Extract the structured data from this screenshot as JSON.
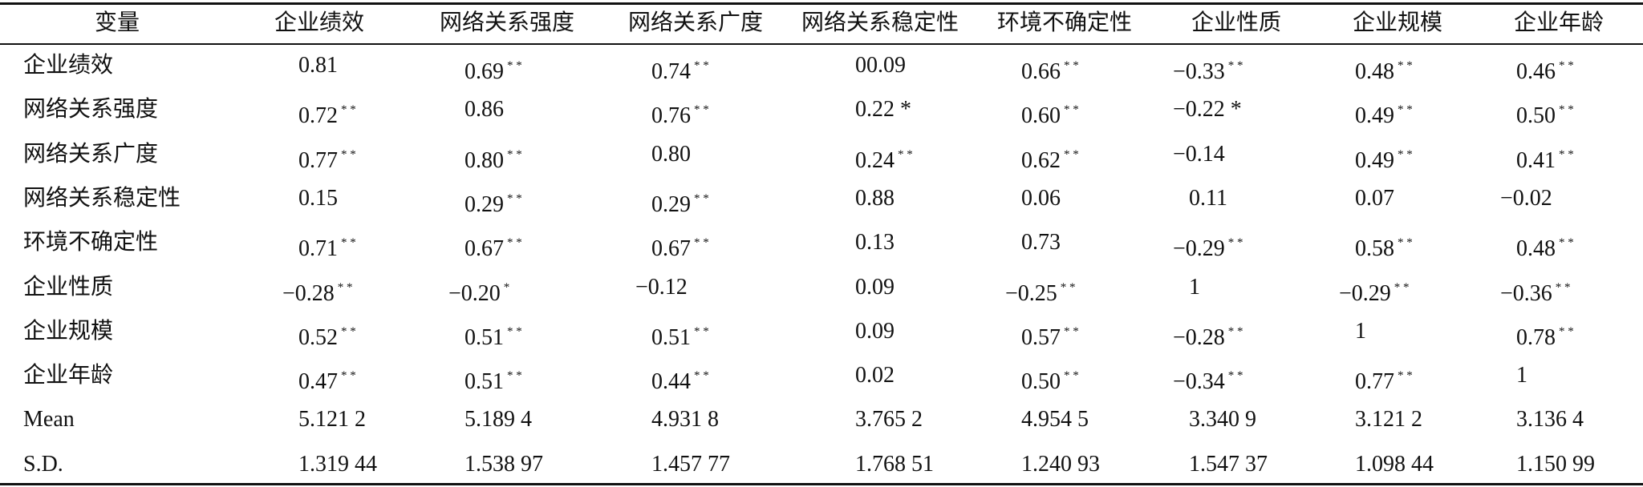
{
  "table": {
    "header": [
      "变量",
      "企业绩效",
      "网络关系强度",
      "网络关系广度",
      "网络关系稳定性",
      "环境不确定性",
      "企业性质",
      "企业规模",
      "企业年龄"
    ],
    "rows": [
      [
        "企业绩效",
        "0.81",
        {
          "text": "0.69",
          "sup": "* *"
        },
        {
          "text": "0.74",
          "sup": "* *"
        },
        "00.09",
        {
          "text": "0.66",
          "sup": "* *"
        },
        {
          "text": "−0.33",
          "sup": "* *"
        },
        {
          "text": "0.48",
          "sup": "* *"
        },
        {
          "text": "0.46",
          "sup": "* *"
        }
      ],
      [
        "网络关系强度",
        {
          "text": "0.72",
          "sup": "* *"
        },
        "0.86",
        {
          "text": "0.76",
          "sup": "* *"
        },
        "0.22 *",
        {
          "text": "0.60",
          "sup": "* *"
        },
        "−0.22 *",
        {
          "text": "0.49",
          "sup": "* *"
        },
        {
          "text": "0.50",
          "sup": "* *"
        }
      ],
      [
        "网络关系广度",
        {
          "text": "0.77",
          "sup": "* *"
        },
        {
          "text": "0.80",
          "sup": "* *"
        },
        "0.80",
        {
          "text": "0.24",
          "sup": "* *"
        },
        {
          "text": "0.62",
          "sup": "* *"
        },
        "−0.14",
        {
          "text": "0.49",
          "sup": "* *"
        },
        {
          "text": "0.41",
          "sup": "* *"
        }
      ],
      [
        "网络关系稳定性",
        "0.15",
        {
          "text": "0.29",
          "sup": "* *"
        },
        {
          "text": "0.29",
          "sup": "* *"
        },
        "0.88",
        "0.06",
        "0.11",
        "0.07",
        "−0.02"
      ],
      [
        "环境不确定性",
        {
          "text": "0.71",
          "sup": "* *"
        },
        {
          "text": "0.67",
          "sup": "* *"
        },
        {
          "text": "0.67",
          "sup": "* *"
        },
        "0.13",
        "0.73",
        {
          "text": "−0.29",
          "sup": "* *"
        },
        {
          "text": "0.58",
          "sup": "* *"
        },
        {
          "text": "0.48",
          "sup": "* *"
        }
      ],
      [
        "企业性质",
        {
          "text": "−0.28",
          "sup": "* *"
        },
        {
          "text": "−0.20",
          "sup": "*"
        },
        "−0.12",
        "0.09",
        {
          "text": "−0.25",
          "sup": "* *"
        },
        "1",
        {
          "text": "−0.29",
          "sup": "* *"
        },
        {
          "text": "−0.36",
          "sup": "* *"
        }
      ],
      [
        "企业规模",
        {
          "text": "0.52",
          "sup": "* *"
        },
        {
          "text": "0.51",
          "sup": "* *"
        },
        {
          "text": "0.51",
          "sup": "* *"
        },
        "0.09",
        {
          "text": "0.57",
          "sup": "* *"
        },
        {
          "text": "−0.28",
          "sup": "* *"
        },
        "1",
        {
          "text": "0.78",
          "sup": "* *"
        }
      ],
      [
        "企业年龄",
        {
          "text": "0.47",
          "sup": "* *"
        },
        {
          "text": "0.51",
          "sup": "* *"
        },
        {
          "text": "0.44",
          "sup": "* *"
        },
        "0.02",
        {
          "text": "0.50",
          "sup": "* *"
        },
        {
          "text": "−0.34",
          "sup": "* *"
        },
        {
          "text": "0.77",
          "sup": "* *"
        },
        "1"
      ],
      [
        "Mean",
        "5.121 2",
        "5.189 4",
        "4.931 8",
        "3.765 2",
        "4.954 5",
        "3.340 9",
        "3.121 2",
        "3.136 4"
      ],
      [
        "S.D.",
        "1.319 44",
        "1.538 97",
        "1.457 77",
        "1.768 51",
        "1.240 93",
        "1.547 37",
        "1.098 44",
        "1.150 99"
      ]
    ]
  }
}
